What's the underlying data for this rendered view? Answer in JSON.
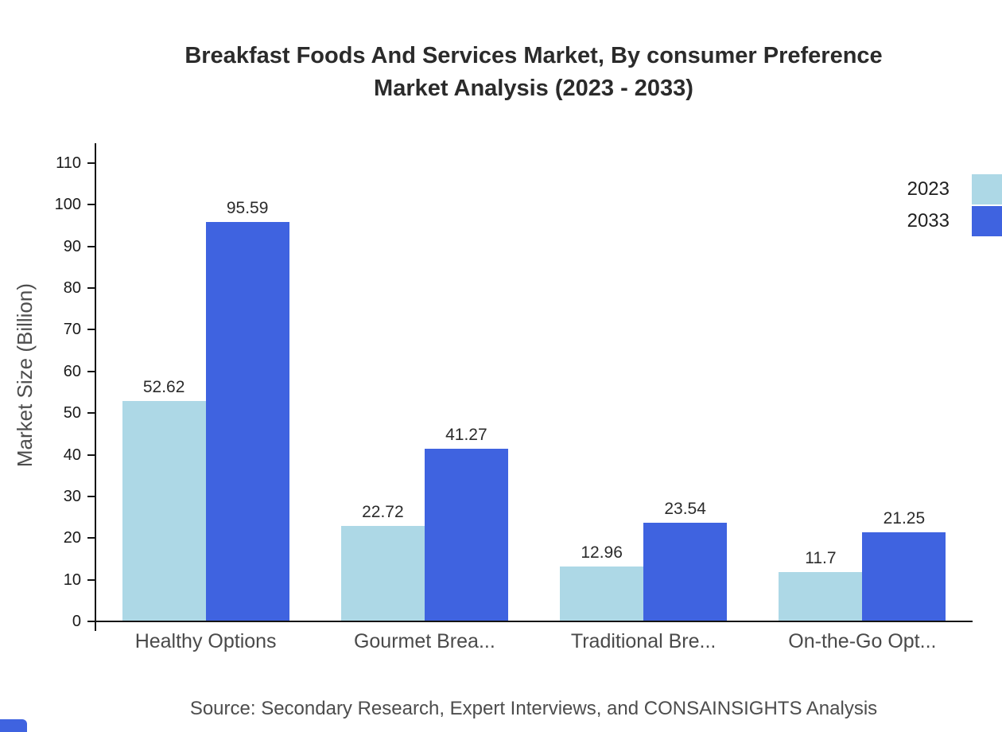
{
  "title": {
    "line1": "Breakfast Foods And Services Market, By consumer Preference",
    "line2": "Market Analysis (2023 - 2033)"
  },
  "chart_data": {
    "type": "bar",
    "title": "Breakfast Foods And Services Market, By consumer Preference Market Analysis (2023 - 2033)",
    "categories": [
      "Healthy Options",
      "Gourmet Brea...",
      "Traditional Bre...",
      "On-the-Go Opt..."
    ],
    "series": [
      {
        "name": "2023",
        "color": "#ADD8E6",
        "values": [
          52.62,
          22.72,
          12.96,
          11.7
        ]
      },
      {
        "name": "2033",
        "color": "#3F63E0",
        "values": [
          95.59,
          41.27,
          23.54,
          21.25
        ]
      }
    ],
    "xlabel": "",
    "ylabel": "Market Size (Billion)",
    "ylim": [
      0,
      110
    ],
    "yticks": [
      0,
      10,
      20,
      30,
      40,
      50,
      60,
      70,
      80,
      90,
      100,
      110
    ],
    "grid": false,
    "legend_position": "top-right",
    "value_labels": true
  },
  "footer": {
    "source": "Source: Secondary Research, Expert Interviews, and CONSAINSIGHTS Analysis"
  },
  "colors": {
    "series_2023": "#ADD8E6",
    "series_2033": "#3F63E0",
    "axis": "#141414",
    "title_text": "#2b2b2b",
    "muted_text": "#4d4d4d"
  }
}
